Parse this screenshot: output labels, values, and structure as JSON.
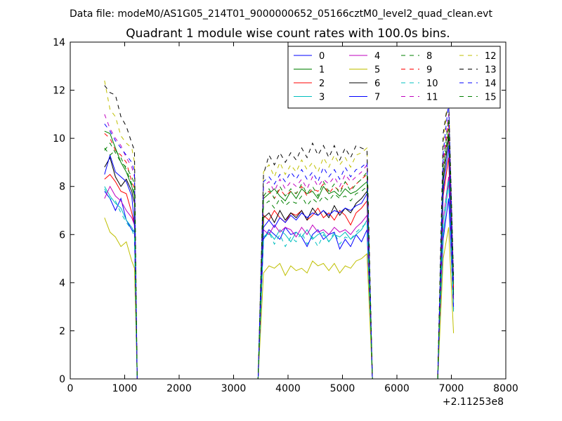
{
  "header": {
    "data_file": "Data file: modeM0/AS1G05_214T01_9000000652_05166cztM0_level2_quad_clean.evt"
  },
  "chart_data": {
    "type": "line",
    "title": "Quadrant 1 module wise count rates with 100.0s bins.",
    "xlabel": "",
    "ylabel": "",
    "x_offset_label": "+2.11253e8",
    "xlim": [
      0,
      8000
    ],
    "ylim": [
      0,
      14
    ],
    "x_ticks": [
      0,
      1000,
      2000,
      3000,
      4000,
      5000,
      6000,
      7000,
      8000
    ],
    "y_ticks": [
      0,
      2,
      4,
      6,
      8,
      10,
      12,
      14
    ],
    "grid": false,
    "legend_placement": "top-right",
    "x": [
      630,
      730,
      830,
      930,
      1030,
      1130,
      1180,
      1230,
      1330,
      3350,
      3450,
      3550,
      3650,
      3750,
      3850,
      3950,
      4050,
      4150,
      4250,
      4350,
      4450,
      4550,
      4650,
      4750,
      4850,
      4950,
      5050,
      5150,
      5250,
      5350,
      5450,
      5550,
      5650,
      6750,
      6850,
      6950,
      7040
    ],
    "series": [
      {
        "name": "0",
        "color": "#0000ff",
        "dash": "solid",
        "values": [
          7.8,
          7.5,
          7.0,
          7.5,
          6.6,
          6.2,
          6.1,
          0,
          0,
          0,
          0,
          5.8,
          6.2,
          6.0,
          5.8,
          6.3,
          6.0,
          6.1,
          5.9,
          5.5,
          6.0,
          6.2,
          5.8,
          6.0,
          6.1,
          5.4,
          5.8,
          5.5,
          6.0,
          5.7,
          6.2,
          0,
          0,
          0,
          5.8,
          7.5,
          3.0
        ]
      },
      {
        "name": "1",
        "color": "#008000",
        "dash": "solid",
        "values": [
          10.3,
          10.2,
          9.6,
          9.0,
          8.6,
          8.0,
          7.6,
          0,
          0,
          0,
          0,
          7.5,
          7.7,
          7.9,
          7.6,
          7.4,
          7.8,
          7.5,
          7.9,
          7.7,
          7.8,
          7.5,
          8.0,
          7.7,
          7.8,
          7.6,
          7.9,
          7.7,
          7.8,
          8.0,
          8.2,
          0,
          0,
          0,
          8.2,
          10.2,
          3.3
        ]
      },
      {
        "name": "2",
        "color": "#ff0000",
        "dash": "solid",
        "values": [
          8.3,
          8.5,
          8.2,
          7.8,
          7.7,
          6.9,
          6.4,
          0,
          0,
          0,
          0,
          6.8,
          6.6,
          7.0,
          6.7,
          6.5,
          6.9,
          6.8,
          7.0,
          6.6,
          6.8,
          7.1,
          6.7,
          6.9,
          6.6,
          7.0,
          6.8,
          6.4,
          6.9,
          7.1,
          7.4,
          0,
          0,
          0,
          7.6,
          9.2,
          3.3
        ]
      },
      {
        "name": "3",
        "color": "#00bfbf",
        "dash": "solid",
        "values": [
          8.0,
          7.6,
          7.3,
          7.1,
          6.6,
          6.3,
          6.1,
          0,
          0,
          0,
          0,
          5.9,
          6.1,
          5.8,
          6.2,
          6.0,
          5.7,
          6.1,
          5.9,
          6.2,
          5.8,
          6.0,
          6.1,
          5.7,
          6.0,
          5.9,
          6.1,
          5.8,
          6.0,
          6.2,
          6.6,
          0,
          0,
          0,
          6.0,
          8.2,
          2.8
        ]
      },
      {
        "name": "4",
        "color": "#bf00bf",
        "dash": "solid",
        "values": [
          7.5,
          8.0,
          7.6,
          7.4,
          7.0,
          6.7,
          6.4,
          0,
          0,
          0,
          0,
          6.2,
          6.0,
          6.4,
          6.1,
          6.3,
          6.2,
          5.9,
          6.3,
          6.0,
          6.4,
          6.1,
          6.2,
          6.0,
          6.3,
          6.1,
          6.2,
          6.0,
          6.3,
          6.5,
          6.8,
          0,
          0,
          0,
          6.6,
          8.4,
          3.1
        ]
      },
      {
        "name": "5",
        "color": "#bfbf00",
        "dash": "solid",
        "values": [
          6.7,
          6.1,
          5.9,
          5.5,
          5.7,
          4.9,
          4.6,
          0,
          0,
          0,
          0,
          4.4,
          4.7,
          4.6,
          4.8,
          4.3,
          4.7,
          4.5,
          4.6,
          4.4,
          4.9,
          4.7,
          4.8,
          4.5,
          4.8,
          4.4,
          4.7,
          4.6,
          4.9,
          5.0,
          5.2,
          0,
          0,
          0,
          5.0,
          6.3,
          1.9
        ]
      },
      {
        "name": "6",
        "color": "#000000",
        "dash": "solid",
        "values": [
          8.8,
          9.2,
          8.4,
          8.0,
          8.3,
          7.8,
          7.3,
          0,
          0,
          0,
          0,
          6.7,
          6.9,
          6.5,
          7.0,
          6.6,
          6.9,
          6.7,
          7.0,
          6.6,
          7.1,
          6.8,
          7.0,
          6.7,
          7.2,
          6.8,
          7.1,
          6.9,
          7.3,
          7.5,
          7.8,
          0,
          0,
          0,
          8.3,
          10.1,
          3.5
        ]
      },
      {
        "name": "7",
        "color": "#0000ff",
        "dash": "solid",
        "values": [
          8.5,
          9.3,
          8.6,
          8.4,
          8.2,
          7.6,
          6.4,
          0,
          0,
          0,
          0,
          6.3,
          6.6,
          6.3,
          6.7,
          6.5,
          6.8,
          6.6,
          6.9,
          6.7,
          6.9,
          6.8,
          7.0,
          6.8,
          7.0,
          6.9,
          7.1,
          7.0,
          7.2,
          7.3,
          7.7,
          0,
          0,
          0,
          7.8,
          9.7,
          2.9
        ]
      },
      {
        "name": "8",
        "color": "#008000",
        "dash": "dashed",
        "values": [
          9.6,
          9.3,
          9.5,
          9.2,
          8.7,
          8.1,
          7.7,
          0,
          0,
          0,
          0,
          7.2,
          7.4,
          7.1,
          7.5,
          7.2,
          7.4,
          7.3,
          7.6,
          7.2,
          7.5,
          7.3,
          7.6,
          7.4,
          7.7,
          7.5,
          7.6,
          7.4,
          7.7,
          7.8,
          8.0,
          0,
          0,
          0,
          8.6,
          10.4,
          3.6
        ]
      },
      {
        "name": "9",
        "color": "#ff0000",
        "dash": "dashed",
        "values": [
          10.2,
          10.0,
          9.5,
          9.3,
          9.0,
          8.2,
          7.9,
          0,
          0,
          0,
          0,
          7.6,
          7.8,
          7.5,
          7.9,
          7.6,
          7.8,
          7.7,
          8.0,
          7.6,
          7.9,
          7.8,
          8.1,
          7.7,
          8.0,
          7.8,
          8.2,
          7.9,
          8.1,
          8.3,
          8.5,
          0,
          0,
          0,
          8.9,
          10.6,
          3.8
        ]
      },
      {
        "name": "10",
        "color": "#00bfbf",
        "dash": "dashed",
        "values": [
          7.9,
          7.5,
          7.4,
          6.9,
          6.5,
          6.2,
          5.9,
          0,
          0,
          0,
          0,
          5.8,
          6.1,
          5.6,
          6.0,
          5.5,
          5.9,
          5.7,
          6.1,
          5.6,
          5.9,
          5.5,
          6.0,
          5.7,
          6.1,
          5.6,
          5.9,
          5.8,
          6.1,
          6.3,
          6.5,
          0,
          0,
          0,
          6.6,
          8.3,
          2.9
        ]
      },
      {
        "name": "11",
        "color": "#bf00bf",
        "dash": "dashed",
        "values": [
          11.0,
          10.4,
          10.0,
          9.7,
          9.2,
          8.8,
          8.4,
          0,
          0,
          0,
          0,
          8.0,
          8.2,
          7.8,
          8.3,
          7.9,
          8.2,
          8.0,
          8.3,
          7.9,
          8.4,
          8.0,
          8.3,
          8.1,
          8.4,
          8.0,
          8.5,
          8.2,
          8.4,
          8.6,
          8.9,
          0,
          0,
          0,
          9.1,
          11.0,
          4.0
        ]
      },
      {
        "name": "12",
        "color": "#bfbf00",
        "dash": "dashed",
        "values": [
          12.4,
          11.2,
          10.9,
          10.1,
          9.8,
          9.6,
          9.0,
          0,
          0,
          0,
          0,
          8.6,
          8.9,
          8.4,
          9.0,
          8.5,
          8.9,
          8.6,
          9.1,
          8.7,
          9.0,
          8.6,
          9.2,
          8.8,
          9.3,
          8.9,
          9.2,
          8.8,
          9.3,
          9.4,
          9.6,
          0,
          0,
          0,
          9.8,
          11.8,
          4.2
        ]
      },
      {
        "name": "13",
        "color": "#000000",
        "dash": "dashed",
        "values": [
          12.2,
          11.9,
          11.8,
          10.9,
          10.5,
          9.8,
          9.5,
          0,
          0,
          0,
          0,
          8.5,
          9.3,
          8.9,
          9.4,
          9.0,
          9.4,
          9.1,
          9.6,
          9.2,
          9.8,
          9.3,
          9.7,
          9.2,
          9.7,
          9.1,
          9.6,
          9.2,
          9.7,
          9.6,
          9.5,
          0,
          0,
          0,
          10.2,
          11.7,
          4.3
        ]
      },
      {
        "name": "14",
        "color": "#0000ff",
        "dash": "dashed",
        "values": [
          10.6,
          10.3,
          9.9,
          9.6,
          9.3,
          9.0,
          8.6,
          0,
          0,
          0,
          0,
          8.2,
          8.4,
          8.1,
          8.5,
          8.2,
          8.6,
          8.3,
          8.7,
          8.3,
          8.6,
          8.2,
          8.8,
          8.4,
          8.7,
          8.3,
          8.8,
          8.4,
          8.7,
          8.8,
          9.0,
          0,
          0,
          0,
          9.4,
          11.5,
          4.0
        ]
      },
      {
        "name": "15",
        "color": "#008000",
        "dash": "dashed",
        "values": [
          9.5,
          9.8,
          9.4,
          9.0,
          8.8,
          8.4,
          8.1,
          0,
          0,
          0,
          0,
          7.6,
          7.9,
          7.5,
          8.0,
          7.6,
          7.9,
          7.7,
          8.1,
          7.7,
          8.0,
          7.6,
          8.2,
          7.8,
          8.1,
          7.7,
          8.2,
          7.8,
          8.1,
          8.3,
          8.6,
          0,
          0,
          0,
          8.8,
          10.8,
          3.7
        ]
      }
    ]
  }
}
